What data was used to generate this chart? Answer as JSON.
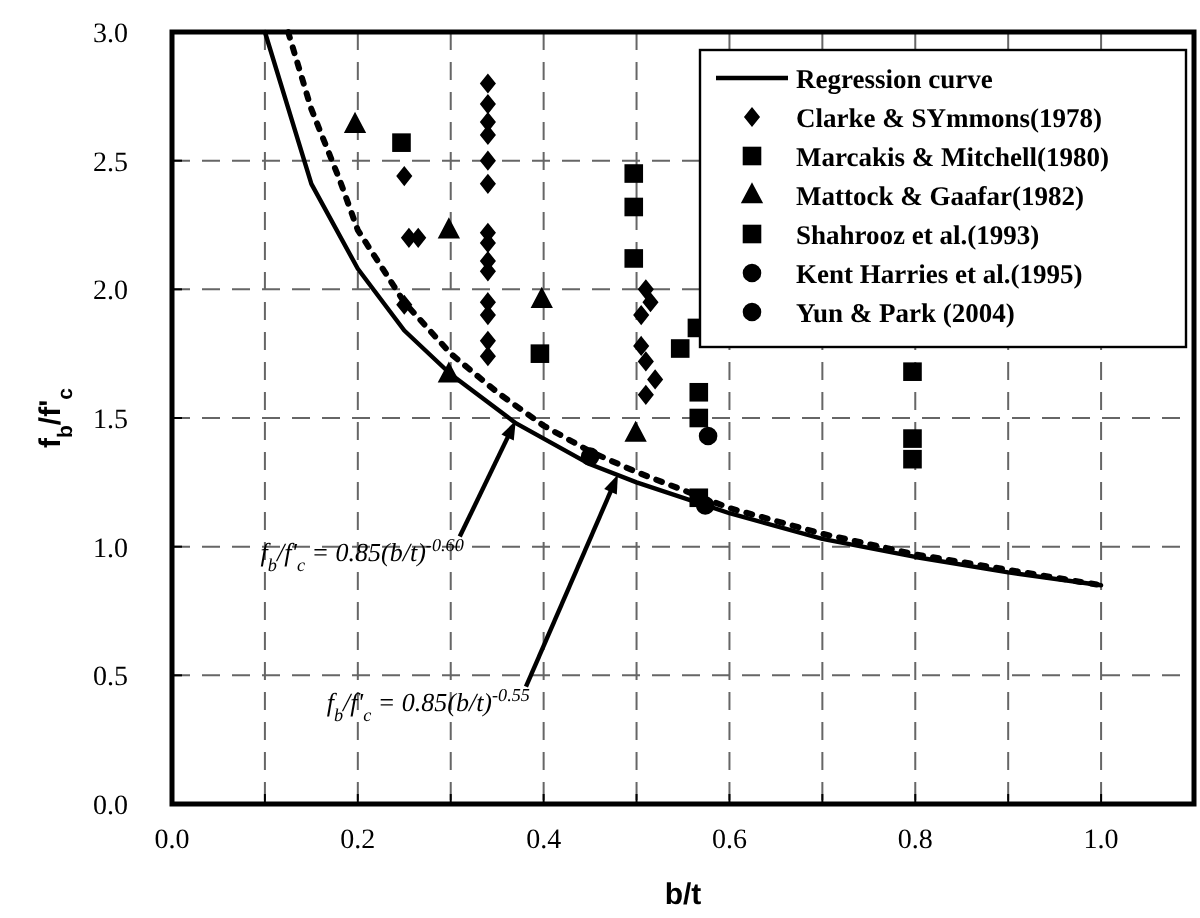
{
  "chart_data": {
    "type": "scatter",
    "xlabel": "b/t",
    "ylabel": "f$_{b}$/f'$_{c}$",
    "xlim": [
      0,
      1.1
    ],
    "xticks": [
      {
        "value": 0,
        "label": "0.0"
      },
      {
        "value": 0.1,
        "label": null
      },
      {
        "value": 0.2,
        "label": "0.2"
      },
      {
        "value": 0.3,
        "label": null
      },
      {
        "value": 0.4,
        "label": "0.4"
      },
      {
        "value": 0.5,
        "label": null
      },
      {
        "value": 0.6,
        "label": "0.6"
      },
      {
        "value": 0.7,
        "label": null
      },
      {
        "value": 0.8,
        "label": "0.8"
      },
      {
        "value": 0.9,
        "label": null
      },
      {
        "value": 1.0,
        "label": "1.0"
      }
    ],
    "ylim": [
      0,
      3
    ],
    "yticks": [
      {
        "value": 0,
        "label": "0.0"
      },
      0.5,
      {
        "value": 1,
        "label": "1.0"
      },
      1.5,
      {
        "value": 2,
        "label": "2.0"
      },
      2.5,
      {
        "value": 3,
        "label": "3.0"
      }
    ],
    "grid": true,
    "legend": "top right",
    "series": [
      {
        "name": "Regression curve",
        "type": "line",
        "color": "#000000",
        "line_style": "solid",
        "x": [
          0.1,
          0.15,
          0.2,
          0.25,
          0.3,
          0.37,
          0.45,
          0.5,
          0.6,
          0.7,
          0.8,
          0.9,
          1.0
        ],
        "values": [
          3.0,
          2.41,
          2.08,
          1.84,
          1.67,
          1.48,
          1.32,
          1.25,
          1.13,
          1.03,
          0.96,
          0.9,
          0.85
        ]
      },
      {
        "type": "line",
        "color": "#000000",
        "line_style": "dotted",
        "x": [
          0.125,
          0.15,
          0.18,
          0.2,
          0.25,
          0.3,
          0.35,
          0.4,
          0.45,
          0.5,
          0.55,
          0.6,
          0.7,
          0.8,
          0.9,
          1.0
        ],
        "values": [
          3.0,
          2.7,
          2.43,
          2.23,
          1.95,
          1.75,
          1.6,
          1.47,
          1.37,
          1.29,
          1.22,
          1.15,
          1.05,
          0.97,
          0.91,
          0.85
        ]
      },
      {
        "name": "Clarke & SYmmons(1978)",
        "marker": "diamond",
        "color": "#000000",
        "x": [
          0.34,
          0.34,
          0.34,
          0.34,
          0.34,
          0.34,
          0.34,
          0.34,
          0.34,
          0.34,
          0.34,
          0.34,
          0.34,
          0.34,
          0.25,
          0.255,
          0.265,
          0.25,
          0.51,
          0.515,
          0.505,
          0.505,
          0.51,
          0.52,
          0.51
        ],
        "values": [
          2.8,
          2.72,
          2.65,
          2.6,
          2.5,
          2.41,
          2.22,
          2.18,
          2.11,
          2.07,
          1.95,
          1.9,
          1.8,
          1.74,
          2.44,
          2.2,
          2.2,
          1.94,
          2.0,
          1.95,
          1.9,
          1.78,
          1.72,
          1.65,
          1.59
        ]
      },
      {
        "name": "Marcakis & Mitchell(1980)",
        "marker": "square",
        "color": "#000000",
        "x": [
          0.247,
          0.396,
          0.497,
          0.497,
          0.497,
          0.547,
          0.565,
          0.567,
          0.567,
          0.567
        ],
        "values": [
          2.57,
          1.75,
          2.45,
          2.32,
          2.12,
          1.77,
          1.85,
          1.6,
          1.5,
          1.19
        ]
      },
      {
        "name": "Mattock & Gaafar(1982)",
        "marker": "triangle",
        "color": "#000000",
        "x": [
          0.197,
          0.298,
          0.398,
          0.298,
          0.499
        ],
        "values": [
          2.64,
          2.23,
          1.96,
          1.67,
          1.44
        ]
      },
      {
        "name": "Shahrooz et al.(1993)",
        "marker": "square",
        "color": "#000000",
        "x": [
          0.797,
          0.797,
          0.797
        ],
        "values": [
          1.68,
          1.42,
          1.34
        ]
      },
      {
        "name": "Kent Harries et al.(1995)",
        "marker": "circle",
        "color": "#000000",
        "x": [
          0.577
        ],
        "values": [
          1.43
        ]
      },
      {
        "name": "Yun & Park (2004)",
        "marker": "circle",
        "color": "#000000",
        "x": [
          0.45,
          0.574
        ],
        "values": [
          1.35,
          1.16
        ]
      }
    ],
    "annotations": [
      {
        "text": "f$_{b}$/f'$_{c}$ = 0.85(b/t)$^{-0.60}$",
        "x": 0.37,
        "y": 1.49
      },
      {
        "text": "f$_{b}$/f'$_{c}$ = 0.85(b/t)$^{-0.55}$",
        "x": 0.48,
        "y": 1.28
      }
    ]
  }
}
